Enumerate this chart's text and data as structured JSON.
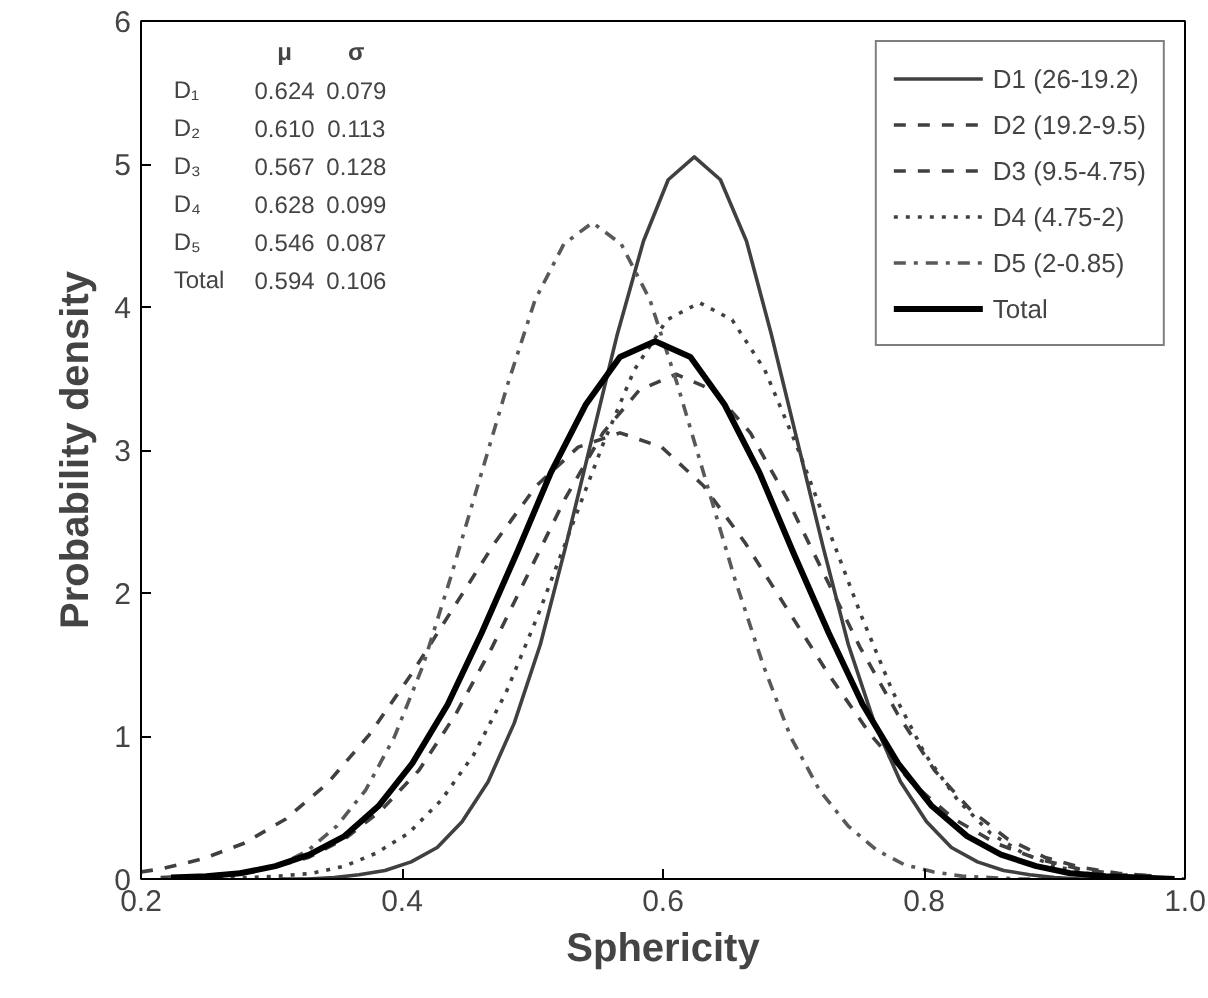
{
  "chart_data": {
    "type": "line",
    "xlabel": "Sphericity",
    "ylabel": "Probability density",
    "xlim": [
      0.2,
      1.0
    ],
    "xticks": [
      0.2,
      0.4,
      0.6,
      0.8,
      {
        "value": 1.0,
        "label": "1.0"
      }
    ],
    "ylim": [
      0,
      6
    ],
    "yticks": [
      0,
      1,
      2,
      3,
      4,
      5,
      6
    ],
    "grid": false,
    "legend": "top right",
    "marker": "none",
    "series": [
      {
        "name": "D1 (26-19.2)",
        "color": "#404040",
        "line_style": "solid",
        "x": [
          0.308,
          0.328,
          0.348,
          0.367,
          0.387,
          0.407,
          0.427,
          0.446,
          0.466,
          0.486,
          0.506,
          0.525,
          0.545,
          0.565,
          0.585,
          0.604,
          0.624,
          0.644,
          0.664,
          0.683,
          0.703,
          0.723,
          0.742,
          0.762,
          0.782,
          0.802,
          0.821,
          0.841,
          0.861,
          0.881,
          0.9,
          0.92,
          0.94
        ],
        "values": [
          0.0,
          0.0,
          0.01,
          0.03,
          0.06,
          0.12,
          0.22,
          0.4,
          0.68,
          1.09,
          1.64,
          2.31,
          3.06,
          3.81,
          4.46,
          4.89,
          5.05,
          4.89,
          4.46,
          3.81,
          3.06,
          2.31,
          1.64,
          1.09,
          0.68,
          0.4,
          0.22,
          0.12,
          0.06,
          0.03,
          0.01,
          0.0,
          0.0
        ]
      },
      {
        "name": "D2 (19.2-9.5)",
        "color": "#404040",
        "line_style": "dashed",
        "x": [
          0.215,
          0.243,
          0.271,
          0.3,
          0.328,
          0.356,
          0.384,
          0.413,
          0.441,
          0.469,
          0.497,
          0.525,
          0.554,
          0.582,
          0.61,
          0.638,
          0.667,
          0.695,
          0.723,
          0.751,
          0.78,
          0.808,
          0.836,
          0.864,
          0.893,
          0.921,
          0.949,
          0.977
        ],
        "values": [
          0.01,
          0.02,
          0.04,
          0.08,
          0.15,
          0.28,
          0.48,
          0.76,
          1.15,
          1.62,
          2.14,
          2.66,
          3.12,
          3.42,
          3.53,
          3.42,
          3.12,
          2.66,
          2.14,
          1.62,
          1.15,
          0.76,
          0.48,
          0.28,
          0.15,
          0.08,
          0.04,
          0.02
        ]
      },
      {
        "name": "D3 (9.5-4.75)",
        "color": "#404040",
        "line_style": "dashed",
        "x": [
          0.2,
          0.215,
          0.247,
          0.279,
          0.311,
          0.343,
          0.375,
          0.407,
          0.439,
          0.471,
          0.503,
          0.535,
          0.567,
          0.599,
          0.631,
          0.663,
          0.695,
          0.727,
          0.759,
          0.791,
          0.823,
          0.855,
          0.887,
          0.919,
          0.951,
          0.983
        ],
        "values": [
          0.05,
          0.07,
          0.14,
          0.25,
          0.42,
          0.67,
          1.01,
          1.43,
          1.89,
          2.35,
          2.75,
          3.02,
          3.12,
          3.02,
          2.75,
          2.35,
          1.89,
          1.43,
          1.01,
          0.67,
          0.42,
          0.25,
          0.14,
          0.07,
          0.03,
          0.02
        ]
      },
      {
        "name": "D4 (4.75-2)",
        "color": "#404040",
        "line_style": "dotted",
        "x": [
          0.232,
          0.257,
          0.281,
          0.306,
          0.331,
          0.356,
          0.38,
          0.405,
          0.43,
          0.455,
          0.48,
          0.504,
          0.529,
          0.554,
          0.578,
          0.603,
          0.628,
          0.653,
          0.678,
          0.702,
          0.727,
          0.752,
          0.776,
          0.801,
          0.826,
          0.851,
          0.876,
          0.9,
          0.925,
          0.95,
          0.974,
          0.999
        ],
        "values": [
          0.0,
          0.0,
          0.01,
          0.02,
          0.04,
          0.09,
          0.18,
          0.32,
          0.55,
          0.87,
          1.31,
          1.84,
          2.44,
          3.04,
          3.56,
          3.91,
          4.03,
          3.91,
          3.56,
          3.04,
          2.44,
          1.84,
          1.31,
          0.87,
          0.55,
          0.32,
          0.18,
          0.09,
          0.04,
          0.02,
          0.01,
          0.0
        ]
      },
      {
        "name": "D5 (2-0.85)",
        "color": "#595959",
        "line_style": "dashdot",
        "x": [
          0.22,
          0.241,
          0.263,
          0.285,
          0.307,
          0.328,
          0.35,
          0.372,
          0.394,
          0.416,
          0.437,
          0.459,
          0.481,
          0.502,
          0.524,
          0.546,
          0.568,
          0.59,
          0.611,
          0.633,
          0.655,
          0.677,
          0.698,
          0.72,
          0.742,
          0.764,
          0.785,
          0.807,
          0.829,
          0.85,
          0.872,
          0.894
        ],
        "values": [
          0.0,
          0.01,
          0.02,
          0.05,
          0.1,
          0.2,
          0.37,
          0.62,
          0.99,
          1.49,
          2.1,
          2.78,
          3.46,
          4.05,
          4.44,
          4.59,
          4.44,
          4.05,
          3.46,
          2.78,
          2.1,
          1.49,
          0.99,
          0.62,
          0.37,
          0.2,
          0.1,
          0.05,
          0.02,
          0.01,
          0.0,
          0.0
        ]
      },
      {
        "name": "Total",
        "color": "#000000",
        "line_style": "solid",
        "x": [
          0.223,
          0.25,
          0.276,
          0.303,
          0.329,
          0.356,
          0.382,
          0.408,
          0.435,
          0.461,
          0.488,
          0.514,
          0.541,
          0.567,
          0.594,
          0.621,
          0.647,
          0.674,
          0.7,
          0.727,
          0.753,
          0.78,
          0.806,
          0.833,
          0.859,
          0.886,
          0.912,
          0.939,
          0.965,
          0.992
        ],
        "values": [
          0.01,
          0.02,
          0.04,
          0.09,
          0.17,
          0.3,
          0.51,
          0.81,
          1.22,
          1.72,
          2.28,
          2.84,
          3.32,
          3.65,
          3.76,
          3.65,
          3.32,
          2.84,
          2.28,
          1.72,
          1.22,
          0.81,
          0.51,
          0.3,
          0.17,
          0.09,
          0.04,
          0.02,
          0.01,
          0.0
        ]
      }
    ],
    "annotations": [
      "μ",
      "σ",
      "D₁",
      "0.624",
      "0.079",
      "D₂",
      "0.610",
      "0.113",
      "D₃",
      "0.567",
      "0.128",
      "D₄",
      "0.628",
      "0.099",
      "D₅",
      "0.546",
      "0.087",
      "Total",
      "0.594",
      "0.106"
    ]
  }
}
